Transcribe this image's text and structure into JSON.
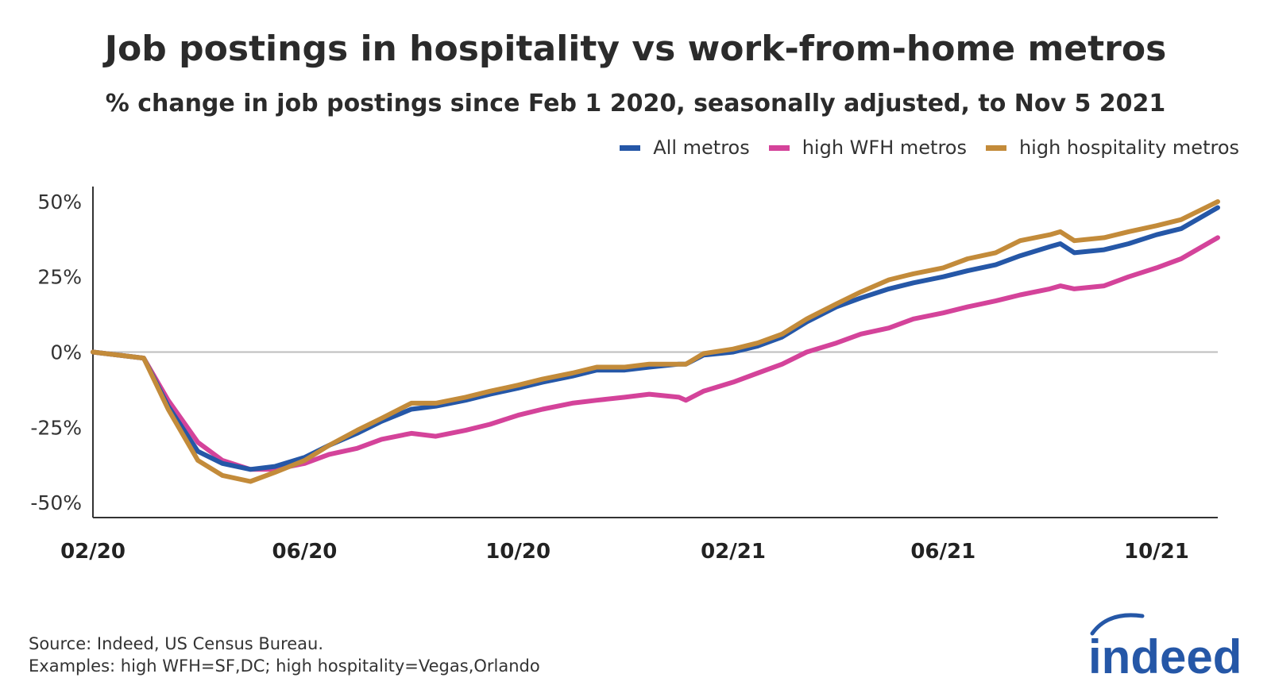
{
  "header": {
    "title": "Job postings in hospitality vs work-from-home metros",
    "subtitle": "% change in job postings since Feb 1 2020, seasonally adjusted, to Nov 5 2021"
  },
  "footer": {
    "source": "Source: Indeed, US Census Bureau.",
    "examples": "Examples: high WFH=SF,DC; high hospitality=Vegas,Orlando",
    "logo_text": "indeed",
    "logo_color": "#2557a7"
  },
  "chart_data": {
    "type": "line",
    "title": "Job postings in hospitality vs work-from-home metros",
    "subtitle": "% change in job postings since Feb 1 2020, seasonally adjusted, to Nov 5 2021",
    "xlabel": "",
    "ylabel": "",
    "x_ticks": [
      "02/20",
      "06/20",
      "10/20",
      "02/21",
      "06/21",
      "10/21"
    ],
    "y_ticks": [
      50,
      25,
      0,
      -25,
      -50
    ],
    "y_tick_labels": [
      "50%",
      "25%",
      "0%",
      "-25%",
      "-50%"
    ],
    "ylim": [
      -55,
      55
    ],
    "xlim": [
      "2020-02-01",
      "2021-11-05"
    ],
    "zero_line": true,
    "grid": false,
    "legend_position": "top-right",
    "series": [
      {
        "name": "All metros",
        "color": "#2557a7",
        "x": [
          "2020-02-01",
          "2020-03-01",
          "2020-03-15",
          "2020-04-01",
          "2020-04-15",
          "2020-05-01",
          "2020-05-15",
          "2020-06-01",
          "2020-06-15",
          "2020-07-01",
          "2020-07-15",
          "2020-08-01",
          "2020-08-15",
          "2020-09-01",
          "2020-09-15",
          "2020-10-01",
          "2020-10-15",
          "2020-11-01",
          "2020-11-15",
          "2020-12-01",
          "2020-12-15",
          "2021-01-01",
          "2021-01-05",
          "2021-01-15",
          "2021-02-01",
          "2021-02-15",
          "2021-03-01",
          "2021-03-15",
          "2021-04-01",
          "2021-04-15",
          "2021-05-01",
          "2021-05-15",
          "2021-06-01",
          "2021-06-15",
          "2021-07-01",
          "2021-07-15",
          "2021-08-01",
          "2021-08-07",
          "2021-08-15",
          "2021-09-01",
          "2021-09-15",
          "2021-10-01",
          "2021-10-15",
          "2021-11-05"
        ],
        "values": [
          0,
          -2,
          -18,
          -33,
          -37,
          -39,
          -38,
          -35,
          -31,
          -27,
          -23,
          -19,
          -18,
          -16,
          -14,
          -12,
          -10,
          -8,
          -6,
          -6,
          -5,
          -4,
          -4,
          -1,
          0,
          2,
          5,
          10,
          15,
          18,
          21,
          23,
          25,
          27,
          29,
          32,
          35,
          36,
          33,
          34,
          36,
          39,
          41,
          48
        ]
      },
      {
        "name": "high WFH metros",
        "color": "#d4439a",
        "x": [
          "2020-02-01",
          "2020-03-01",
          "2020-03-15",
          "2020-04-01",
          "2020-04-15",
          "2020-05-01",
          "2020-05-15",
          "2020-06-01",
          "2020-06-15",
          "2020-07-01",
          "2020-07-15",
          "2020-08-01",
          "2020-08-15",
          "2020-09-01",
          "2020-09-15",
          "2020-10-01",
          "2020-10-15",
          "2020-11-01",
          "2020-11-15",
          "2020-12-01",
          "2020-12-15",
          "2021-01-01",
          "2021-01-05",
          "2021-01-15",
          "2021-02-01",
          "2021-02-15",
          "2021-03-01",
          "2021-03-15",
          "2021-04-01",
          "2021-04-15",
          "2021-05-01",
          "2021-05-15",
          "2021-06-01",
          "2021-06-15",
          "2021-07-01",
          "2021-07-15",
          "2021-08-01",
          "2021-08-07",
          "2021-08-15",
          "2021-09-01",
          "2021-09-15",
          "2021-10-01",
          "2021-10-15",
          "2021-11-05"
        ],
        "values": [
          0,
          -2,
          -16,
          -30,
          -36,
          -39,
          -39,
          -37,
          -34,
          -32,
          -29,
          -27,
          -28,
          -26,
          -24,
          -21,
          -19,
          -17,
          -16,
          -15,
          -14,
          -15,
          -16,
          -13,
          -10,
          -7,
          -4,
          0,
          3,
          6,
          8,
          11,
          13,
          15,
          17,
          19,
          21,
          22,
          21,
          22,
          25,
          28,
          31,
          38
        ]
      },
      {
        "name": "high hospitality metros",
        "color": "#c38b3a",
        "x": [
          "2020-02-01",
          "2020-03-01",
          "2020-03-15",
          "2020-04-01",
          "2020-04-15",
          "2020-05-01",
          "2020-05-15",
          "2020-06-01",
          "2020-06-15",
          "2020-07-01",
          "2020-07-15",
          "2020-08-01",
          "2020-08-15",
          "2020-09-01",
          "2020-09-15",
          "2020-10-01",
          "2020-10-15",
          "2020-11-01",
          "2020-11-15",
          "2020-12-01",
          "2020-12-15",
          "2021-01-01",
          "2021-01-05",
          "2021-01-15",
          "2021-02-01",
          "2021-02-15",
          "2021-03-01",
          "2021-03-15",
          "2021-04-01",
          "2021-04-15",
          "2021-05-01",
          "2021-05-15",
          "2021-06-01",
          "2021-06-15",
          "2021-07-01",
          "2021-07-15",
          "2021-08-01",
          "2021-08-07",
          "2021-08-15",
          "2021-09-01",
          "2021-09-15",
          "2021-10-01",
          "2021-10-15",
          "2021-11-05"
        ],
        "values": [
          0,
          -2,
          -19,
          -36,
          -41,
          -43,
          -40,
          -36,
          -31,
          -26,
          -22,
          -17,
          -17,
          -15,
          -13,
          -11,
          -9,
          -7,
          -5,
          -5,
          -4,
          -4,
          -4,
          -0.5,
          1,
          3,
          6,
          11,
          16,
          20,
          24,
          26,
          28,
          31,
          33,
          37,
          39,
          40,
          37,
          38,
          40,
          42,
          44,
          50
        ]
      }
    ]
  }
}
